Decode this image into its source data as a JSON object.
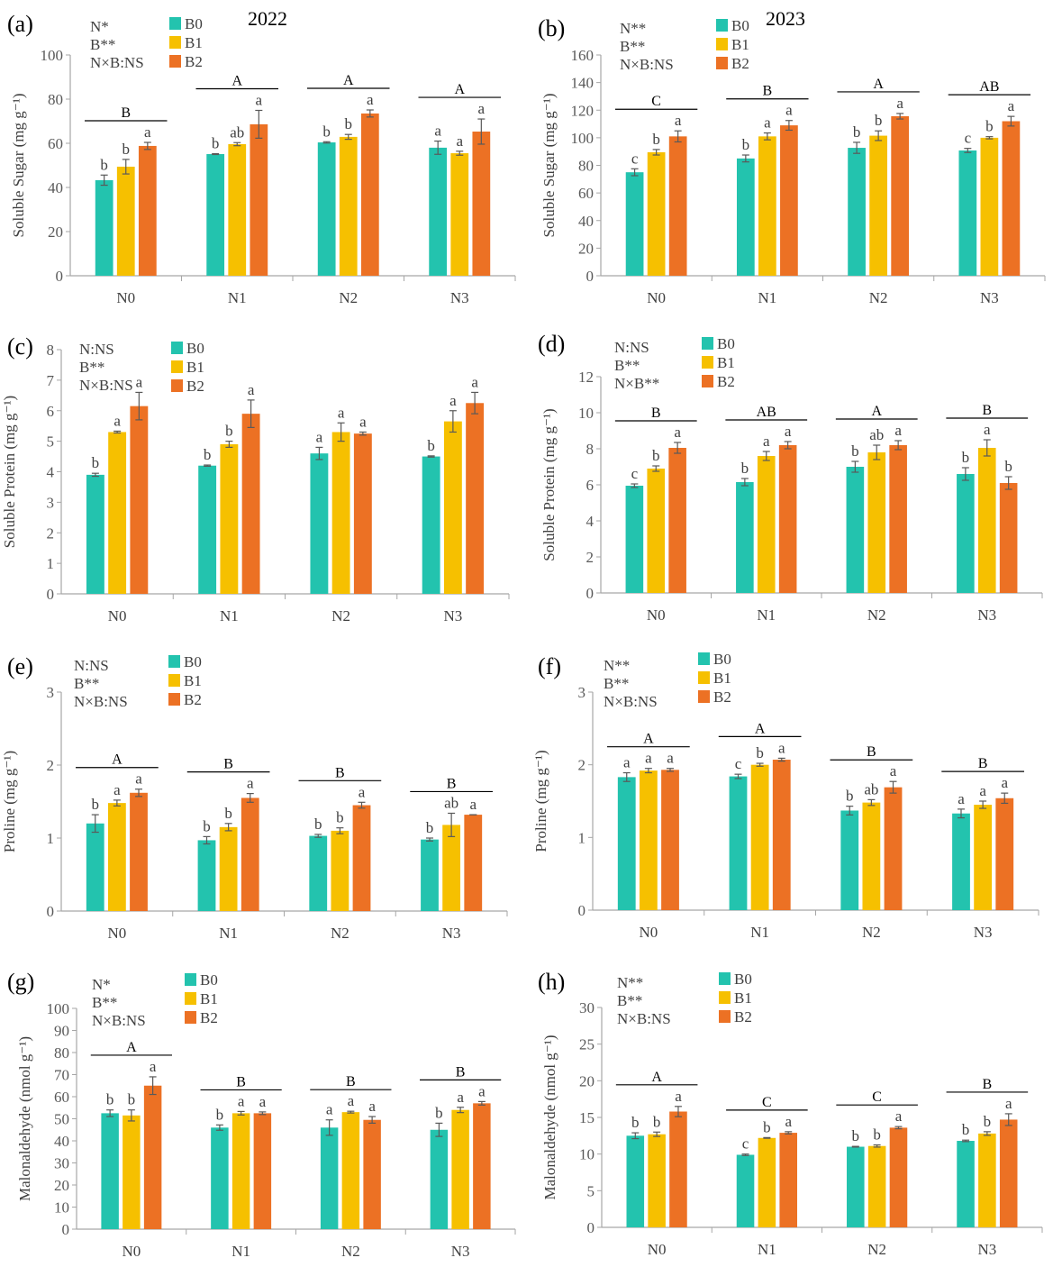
{
  "chart_data": [
    {
      "panel": "(a)",
      "type": "bar",
      "year": "2022",
      "ylabel": "Soluble Sugar (mg g⁻¹)",
      "ylim": [
        0,
        100
      ],
      "yticks": [
        0,
        20,
        40,
        60,
        80,
        100
      ],
      "categories": [
        "N0",
        "N1",
        "N2",
        "N3"
      ],
      "stats": [
        "N*",
        "B**",
        "N×B:NS"
      ],
      "series": [
        {
          "name": "B0",
          "values": [
            43.3,
            55.1,
            60.4,
            58
          ],
          "errors": [
            2.3,
            0.2,
            0.3,
            3
          ],
          "letters": [
            "b",
            "b",
            "b",
            "a"
          ]
        },
        {
          "name": "B1",
          "values": [
            49.4,
            59.6,
            62.9,
            55.5
          ],
          "errors": [
            3.3,
            0.7,
            1.1,
            0.9
          ],
          "letters": [
            "b",
            "ab",
            "b",
            "a"
          ]
        },
        {
          "name": "B2",
          "values": [
            58.8,
            68.6,
            73.5,
            65.3
          ],
          "errors": [
            1.6,
            6.3,
            1.6,
            5.7
          ],
          "letters": [
            "a",
            "a",
            "a",
            "a"
          ]
        }
      ],
      "group_letters": [
        "B",
        "A",
        "A",
        "A"
      ]
    },
    {
      "panel": "(b)",
      "type": "bar",
      "year": "2023",
      "ylabel": "Soluble Sugar (mg g⁻¹)",
      "ylim": [
        0,
        160
      ],
      "yticks": [
        0,
        20,
        40,
        60,
        80,
        100,
        120,
        140,
        160
      ],
      "categories": [
        "N0",
        "N1",
        "N2",
        "N3"
      ],
      "stats": [
        "N**",
        "B**",
        "N×B:NS"
      ],
      "series": [
        {
          "name": "B0",
          "values": [
            75,
            85,
            92.7,
            90.8
          ],
          "errors": [
            2.5,
            2.5,
            4,
            1.5
          ],
          "letters": [
            "c",
            "b",
            "b",
            "c"
          ]
        },
        {
          "name": "B1",
          "values": [
            89.5,
            101,
            101.5,
            100
          ],
          "errors": [
            2,
            2.5,
            3.5,
            0.8
          ],
          "letters": [
            "b",
            "a",
            "b",
            "b"
          ]
        },
        {
          "name": "B2",
          "values": [
            101,
            109,
            115.6,
            112
          ],
          "errors": [
            4,
            3.5,
            2,
            3.5
          ],
          "letters": [
            "a",
            "a",
            "a",
            "a"
          ]
        }
      ],
      "group_letters": [
        "C",
        "B",
        "A",
        "AB"
      ]
    },
    {
      "panel": "(c)",
      "type": "bar",
      "year": "",
      "ylabel": "Soluble Protein (mg g⁻¹)",
      "ylim": [
        0,
        8
      ],
      "yticks": [
        0,
        1,
        2,
        3,
        4,
        5,
        6,
        7,
        8
      ],
      "categories": [
        "N0",
        "N1",
        "N2",
        "N3"
      ],
      "stats": [
        "N:NS",
        "B**",
        "N×B:NS"
      ],
      "series": [
        {
          "name": "B0",
          "values": [
            3.9,
            4.2,
            4.6,
            4.5
          ],
          "errors": [
            0.05,
            0.02,
            0.2,
            0.02
          ],
          "letters": [
            "b",
            "b",
            "a",
            "b"
          ]
        },
        {
          "name": "B1",
          "values": [
            5.3,
            4.9,
            5.3,
            5.65
          ],
          "errors": [
            0.03,
            0.1,
            0.3,
            0.35
          ],
          "letters": [
            "a",
            "b",
            "a",
            "a"
          ]
        },
        {
          "name": "B2",
          "values": [
            6.15,
            5.9,
            5.25,
            6.25
          ],
          "errors": [
            0.45,
            0.45,
            0.05,
            0.35
          ],
          "letters": [
            "a",
            "a",
            "a",
            "a"
          ]
        }
      ],
      "group_letters": []
    },
    {
      "panel": "(d)",
      "type": "bar",
      "year": "",
      "ylabel": "Soluble Protein (mg g⁻¹)",
      "ylim": [
        0,
        12
      ],
      "yticks": [
        0,
        2,
        4,
        6,
        8,
        10,
        12
      ],
      "categories": [
        "N0",
        "N1",
        "N2",
        "N3"
      ],
      "stats": [
        "N:NS",
        "B**",
        "N×B**"
      ],
      "series": [
        {
          "name": "B0",
          "values": [
            5.95,
            6.15,
            7.0,
            6.6
          ],
          "errors": [
            0.1,
            0.2,
            0.3,
            0.35
          ],
          "letters": [
            "c",
            "b",
            "b",
            "b"
          ]
        },
        {
          "name": "B1",
          "values": [
            6.9,
            7.6,
            7.8,
            8.05
          ],
          "errors": [
            0.15,
            0.25,
            0.4,
            0.45
          ],
          "letters": [
            "b",
            "a",
            "ab",
            "a"
          ]
        },
        {
          "name": "B2",
          "values": [
            8.05,
            8.2,
            8.2,
            6.1
          ],
          "errors": [
            0.3,
            0.2,
            0.25,
            0.35
          ],
          "letters": [
            "a",
            "a",
            "a",
            "b"
          ]
        }
      ],
      "group_letters": [
        "B",
        "AB",
        "A",
        "B"
      ]
    },
    {
      "panel": "(e)",
      "type": "bar",
      "year": "",
      "ylabel": "Proline (mg g⁻¹)",
      "ylim": [
        0,
        3
      ],
      "yticks": [
        0,
        1,
        2,
        3
      ],
      "categories": [
        "N0",
        "N1",
        "N2",
        "N3"
      ],
      "stats": [
        "N:NS",
        "B**",
        "N×B:NS"
      ],
      "series": [
        {
          "name": "B0",
          "values": [
            1.2,
            0.97,
            1.03,
            0.98
          ],
          "errors": [
            0.12,
            0.05,
            0.02,
            0.02
          ],
          "letters": [
            "b",
            "b",
            "b",
            "b"
          ]
        },
        {
          "name": "B1",
          "values": [
            1.48,
            1.15,
            1.1,
            1.18
          ],
          "errors": [
            0.04,
            0.05,
            0.04,
            0.16
          ],
          "letters": [
            "a",
            "b",
            "b",
            "ab"
          ]
        },
        {
          "name": "B2",
          "values": [
            1.62,
            1.55,
            1.45,
            1.32
          ],
          "errors": [
            0.05,
            0.06,
            0.04,
            0.0
          ],
          "letters": [
            "a",
            "a",
            "a",
            "a"
          ]
        }
      ],
      "group_letters": [
        "A",
        "B",
        "B",
        "B"
      ]
    },
    {
      "panel": "(f)",
      "type": "bar",
      "year": "",
      "ylabel": "Proline (mg g⁻¹)",
      "ylim": [
        0,
        3
      ],
      "yticks": [
        0,
        1,
        2,
        3
      ],
      "categories": [
        "N0",
        "N1",
        "N2",
        "N3"
      ],
      "stats": [
        "N**",
        "B**",
        "N×B:NS"
      ],
      "series": [
        {
          "name": "B0",
          "values": [
            1.83,
            1.84,
            1.37,
            1.33
          ],
          "errors": [
            0.06,
            0.03,
            0.06,
            0.06
          ],
          "letters": [
            "a",
            "c",
            "b",
            "a"
          ]
        },
        {
          "name": "B1",
          "values": [
            1.92,
            2.0,
            1.48,
            1.45
          ],
          "errors": [
            0.03,
            0.02,
            0.04,
            0.05
          ],
          "letters": [
            "a",
            "b",
            "ab",
            "a"
          ]
        },
        {
          "name": "B2",
          "values": [
            1.93,
            2.07,
            1.69,
            1.54
          ],
          "errors": [
            0.02,
            0.02,
            0.08,
            0.07
          ],
          "letters": [
            "a",
            "a",
            "a",
            "a"
          ]
        }
      ],
      "group_letters": [
        "A",
        "A",
        "B",
        "B"
      ]
    },
    {
      "panel": "(g)",
      "type": "bar",
      "year": "",
      "ylabel": "Malonaldehyde (nmol g⁻¹)",
      "ylim": [
        0,
        100
      ],
      "yticks": [
        0,
        10,
        20,
        30,
        40,
        50,
        60,
        70,
        80,
        90,
        100
      ],
      "categories": [
        "N0",
        "N1",
        "N2",
        "N3"
      ],
      "stats": [
        "N*",
        "B**",
        "N×B:NS"
      ],
      "series": [
        {
          "name": "B0",
          "values": [
            52.5,
            46,
            46,
            45
          ],
          "errors": [
            1.5,
            1.2,
            3.5,
            3
          ],
          "letters": [
            "b",
            "b",
            "a",
            "b"
          ]
        },
        {
          "name": "B1",
          "values": [
            51.5,
            52.5,
            53,
            54
          ],
          "errors": [
            2.5,
            0.8,
            0.4,
            1.2
          ],
          "letters": [
            "b",
            "a",
            "a",
            "a"
          ]
        },
        {
          "name": "B2",
          "values": [
            65,
            52.5,
            49.5,
            57
          ],
          "errors": [
            4,
            0.6,
            1.5,
            0.8
          ],
          "letters": [
            "a",
            "a",
            "a",
            "a"
          ]
        }
      ],
      "group_letters": [
        "A",
        "B",
        "B",
        "B"
      ]
    },
    {
      "panel": "(h)",
      "type": "bar",
      "year": "",
      "ylabel": "Malonaldehyde (nmol g⁻¹)",
      "ylim": [
        0,
        30
      ],
      "yticks": [
        0,
        5,
        10,
        15,
        20,
        25,
        30
      ],
      "categories": [
        "N0",
        "N1",
        "N2",
        "N3"
      ],
      "stats": [
        "N**",
        "B**",
        "N×B:NS"
      ],
      "series": [
        {
          "name": "B0",
          "values": [
            12.5,
            9.9,
            11.0,
            11.8
          ],
          "errors": [
            0.4,
            0.1,
            0.05,
            0.1
          ],
          "letters": [
            "b",
            "c",
            "b",
            "b"
          ]
        },
        {
          "name": "B1",
          "values": [
            12.7,
            12.2,
            11.1,
            12.8
          ],
          "errors": [
            0.3,
            0.05,
            0.15,
            0.25
          ],
          "letters": [
            "b",
            "b",
            "b",
            "b"
          ]
        },
        {
          "name": "B2",
          "values": [
            15.8,
            12.9,
            13.6,
            14.7
          ],
          "errors": [
            0.7,
            0.15,
            0.15,
            0.8
          ],
          "letters": [
            "a",
            "a",
            "a",
            "a"
          ]
        }
      ],
      "group_letters": [
        "A",
        "C",
        "C",
        "B"
      ]
    }
  ],
  "colors": {
    "B0": "#23c3ae",
    "B1": "#f6c000",
    "B2": "#ec7124",
    "axis": "#a6a6a6",
    "error": "#595959"
  }
}
